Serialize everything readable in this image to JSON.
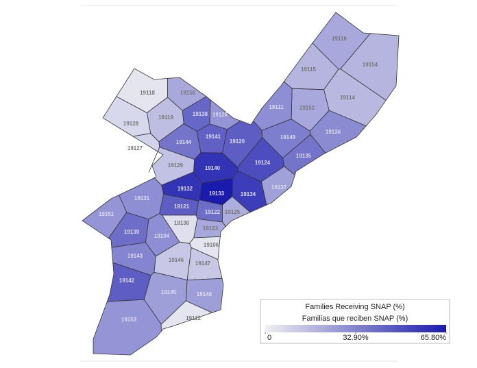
{
  "map": {
    "type": "choropleth",
    "colors": [
      "#efeff3",
      "#1a1aae"
    ],
    "regions": [
      {
        "zip": "19116",
        "value": 22
      },
      {
        "zip": "19154",
        "value": 18
      },
      {
        "zip": "19115",
        "value": 18
      },
      {
        "zip": "19114",
        "value": 17
      },
      {
        "zip": "19152",
        "value": 22
      },
      {
        "zip": "19111",
        "value": 30
      },
      {
        "zip": "19136",
        "value": 31
      },
      {
        "zip": "19149",
        "value": 35
      },
      {
        "zip": "19135",
        "value": 38
      },
      {
        "zip": "19124",
        "value": 50
      },
      {
        "zip": "19150",
        "value": 22
      },
      {
        "zip": "19138",
        "value": 42
      },
      {
        "zip": "19126",
        "value": 28
      },
      {
        "zip": "19118",
        "value": 3
      },
      {
        "zip": "19119",
        "value": 15
      },
      {
        "zip": "19128",
        "value": 7
      },
      {
        "zip": "19127",
        "value": 9
      },
      {
        "zip": "19144",
        "value": 38
      },
      {
        "zip": "19141",
        "value": 44
      },
      {
        "zip": "19120",
        "value": 45
      },
      {
        "zip": "19129",
        "value": 14
      },
      {
        "zip": "19140",
        "value": 58
      },
      {
        "zip": "19132",
        "value": 58
      },
      {
        "zip": "19133",
        "value": 65.8
      },
      {
        "zip": "19134",
        "value": 55
      },
      {
        "zip": "19137",
        "value": 24
      },
      {
        "zip": "19131",
        "value": 30
      },
      {
        "zip": "19151",
        "value": 28
      },
      {
        "zip": "19121",
        "value": 45
      },
      {
        "zip": "19122",
        "value": 40
      },
      {
        "zip": "19125",
        "value": 20
      },
      {
        "zip": "19130",
        "value": 5
      },
      {
        "zip": "19123",
        "value": 22
      },
      {
        "zip": "19139",
        "value": 40
      },
      {
        "zip": "19104",
        "value": 30
      },
      {
        "zip": "19106",
        "value": 3
      },
      {
        "zip": "19143",
        "value": 33
      },
      {
        "zip": "19146",
        "value": 12
      },
      {
        "zip": "19147",
        "value": 12
      },
      {
        "zip": "19142",
        "value": 45
      },
      {
        "zip": "19145",
        "value": 25
      },
      {
        "zip": "19148",
        "value": 25
      },
      {
        "zip": "19153",
        "value": 28
      },
      {
        "zip": "19112",
        "value": 3
      }
    ],
    "legend": {
      "title": "Families Receiving SNAP (%)",
      "subtitle": "Familias que reciben SNAP (%)",
      "ticks": [
        0,
        {
          "value": 32.9,
          "label": "32.90%"
        },
        {
          "value": 65.8,
          "label": "65.80%"
        }
      ]
    }
  }
}
